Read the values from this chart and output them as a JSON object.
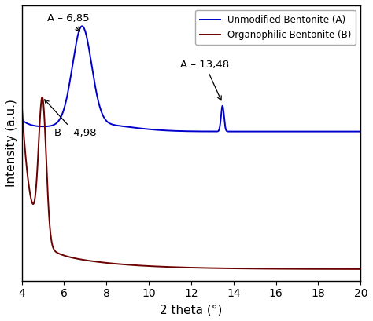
{
  "xlim": [
    4,
    20
  ],
  "xticks": [
    4,
    6,
    8,
    10,
    12,
    14,
    16,
    18,
    20
  ],
  "xlabel": "2 theta (°)",
  "ylabel": "Intensity (a.u.)",
  "color_A": "#0000cc",
  "color_B": "#6b0000",
  "legend_A": "Unmodified Bentonite (A)",
  "legend_B": "Organophilic Bentonite (B)",
  "annotation_A1_label": "A – 6,85",
  "annotation_A2_label": "A – 13,48",
  "annotation_B1_label": "B – 4,98",
  "background_color": "#ffffff",
  "linewidth": 1.4
}
